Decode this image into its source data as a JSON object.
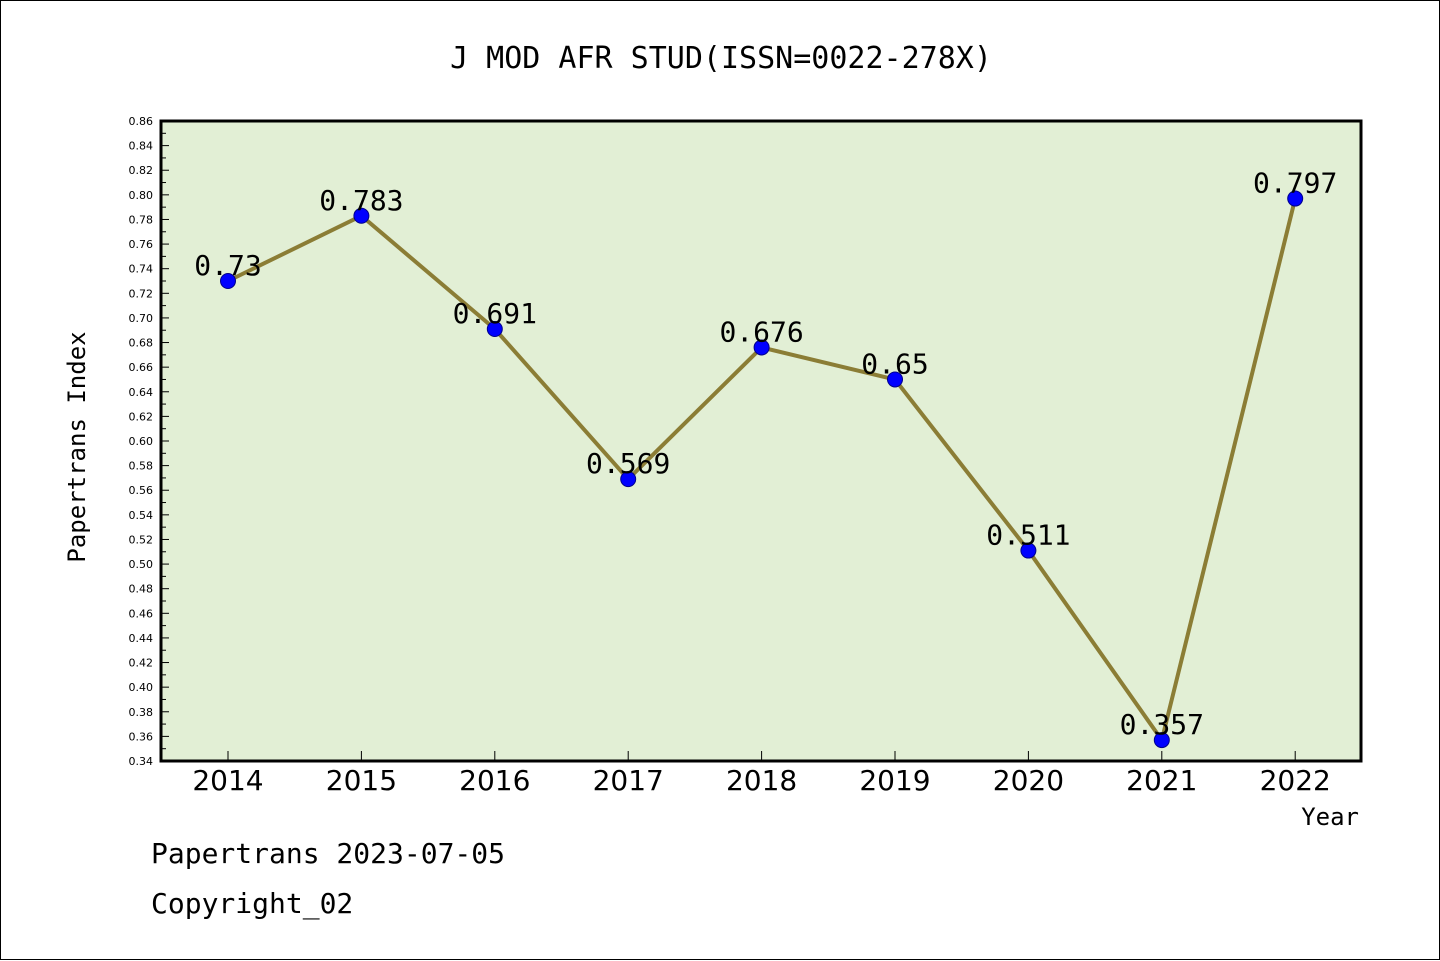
{
  "chart_data": {
    "type": "line",
    "title": "J MOD AFR STUD(ISSN=0022-278X)",
    "xlabel": "Year",
    "ylabel": "Papertrans Index",
    "categories": [
      "2014",
      "2015",
      "2016",
      "2017",
      "2018",
      "2019",
      "2020",
      "2021",
      "2022"
    ],
    "series": [
      {
        "values": [
          0.73,
          0.783,
          0.691,
          0.569,
          0.676,
          0.65,
          0.511,
          0.357,
          0.797
        ],
        "labels": [
          "0.73",
          "0.783",
          "0.691",
          "0.569",
          "0.676",
          "0.65",
          "0.511",
          "0.357",
          "0.797"
        ]
      }
    ],
    "ylim": [
      0.34,
      0.86
    ],
    "yticks": [
      "0.34",
      "0.36",
      "0.38",
      "0.40",
      "0.42",
      "0.44",
      "0.46",
      "0.48",
      "0.50",
      "0.52",
      "0.54",
      "0.56",
      "0.58",
      "0.60",
      "0.62",
      "0.64",
      "0.66",
      "0.68",
      "0.70",
      "0.72",
      "0.74",
      "0.76",
      "0.78",
      "0.80",
      "0.82",
      "0.84",
      "0.86"
    ],
    "grid": false,
    "colors": {
      "plot_background": "#e2efd5",
      "line": "#8b7d35",
      "marker": "#0000ff"
    }
  },
  "footer": {
    "line1": "Papertrans 2023-07-05",
    "line2": "Copyright_02"
  }
}
